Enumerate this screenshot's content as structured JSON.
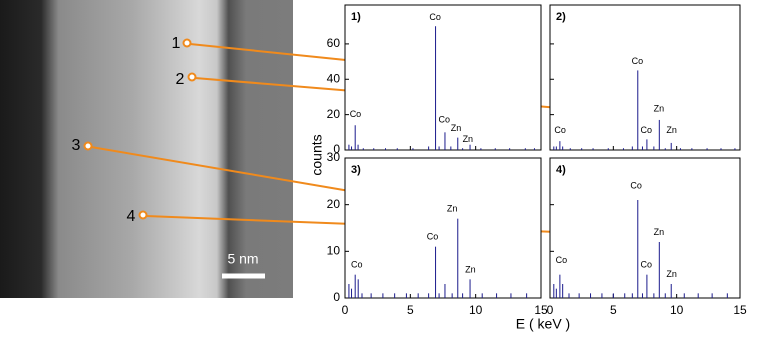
{
  "figure": {
    "y_label": "counts",
    "x_label": "E  ( keV )",
    "scale_bar": "5 nm",
    "points": [
      "1",
      "2",
      "3",
      "4"
    ]
  },
  "chart_data": [
    {
      "type": "stem",
      "panel_label": "1)",
      "color": "#1a1a8c",
      "xlim": [
        0,
        15
      ],
      "ylim": [
        0,
        82
      ],
      "xticks": [
        0,
        5,
        10,
        15
      ],
      "yticks": [
        0,
        20,
        40,
        60
      ],
      "xtick_labels": false,
      "ytick_labels": true,
      "x": [
        0.3,
        0.5,
        0.78,
        1.0,
        1.4,
        2.2,
        3.1,
        4.0,
        5.2,
        6.4,
        6.93,
        7.2,
        7.65,
        8.1,
        8.63,
        9.0,
        9.57,
        10.4,
        11.5,
        12.6,
        13.8,
        14.5
      ],
      "values": [
        3,
        2,
        14,
        3,
        1,
        1,
        1,
        1,
        1,
        2,
        70,
        2,
        10,
        2,
        7,
        1,
        3,
        1,
        1,
        1,
        1,
        1
      ],
      "annotations": [
        {
          "text": "Co",
          "x": 0.8,
          "y": 20
        },
        {
          "text": "Co",
          "x": 6.9,
          "y": 75
        },
        {
          "text": "Co",
          "x": 7.6,
          "y": 17
        },
        {
          "text": "Zn",
          "x": 8.5,
          "y": 12
        },
        {
          "text": "Zn",
          "x": 9.4,
          "y": 6
        }
      ]
    },
    {
      "type": "stem",
      "panel_label": "2)",
      "color": "#1a1a8c",
      "xlim": [
        0,
        15
      ],
      "ylim": [
        0,
        82
      ],
      "xticks": [
        0,
        5,
        10,
        15
      ],
      "yticks": [
        0,
        20,
        40,
        60
      ],
      "xtick_labels": false,
      "ytick_labels": false,
      "x": [
        0.3,
        0.5,
        0.78,
        1.0,
        1.6,
        2.5,
        3.4,
        4.6,
        5.8,
        6.5,
        6.93,
        7.3,
        7.65,
        8.2,
        8.63,
        9.1,
        9.57,
        10.3,
        11.2,
        12.4,
        13.5,
        14.6
      ],
      "values": [
        2,
        2,
        5,
        2,
        1,
        1,
        1,
        1,
        1,
        2,
        45,
        2,
        6,
        2,
        17,
        1,
        4,
        1,
        1,
        1,
        1,
        1
      ],
      "annotations": [
        {
          "text": "Co",
          "x": 0.8,
          "y": 11
        },
        {
          "text": "Co",
          "x": 6.9,
          "y": 50
        },
        {
          "text": "Co",
          "x": 7.6,
          "y": 11
        },
        {
          "text": "Zn",
          "x": 8.6,
          "y": 23
        },
        {
          "text": "Zn",
          "x": 9.6,
          "y": 11
        }
      ]
    },
    {
      "type": "stem",
      "panel_label": "3)",
      "color": "#1a1a8c",
      "xlim": [
        0,
        15
      ],
      "ylim": [
        0,
        30
      ],
      "xticks": [
        0,
        5,
        10,
        15
      ],
      "yticks": [
        0,
        10,
        20,
        30
      ],
      "xtick_labels": true,
      "ytick_labels": true,
      "x": [
        0.3,
        0.5,
        0.78,
        1.01,
        1.3,
        2.0,
        2.9,
        3.8,
        4.7,
        5.6,
        6.4,
        6.93,
        7.2,
        7.65,
        8.2,
        8.63,
        9.0,
        9.57,
        10.5,
        11.6,
        12.7,
        13.9
      ],
      "values": [
        3,
        2,
        5,
        4,
        1,
        1,
        1,
        1,
        1,
        1,
        1,
        11,
        1,
        3,
        1,
        17,
        1,
        4,
        1,
        1,
        1,
        1
      ],
      "annotations": [
        {
          "text": "Co",
          "x": 0.9,
          "y": 7
        },
        {
          "text": "Co",
          "x": 6.7,
          "y": 13
        },
        {
          "text": "Zn",
          "x": 8.2,
          "y": 19
        },
        {
          "text": "Zn",
          "x": 9.6,
          "y": 6
        }
      ]
    },
    {
      "type": "stem",
      "panel_label": "4)",
      "color": "#1a1a8c",
      "xlim": [
        0,
        15
      ],
      "ylim": [
        0,
        30
      ],
      "xticks": [
        0,
        5,
        10,
        15
      ],
      "yticks": [
        0,
        10,
        20,
        30
      ],
      "xtick_labels": true,
      "ytick_labels": false,
      "x": [
        0.3,
        0.5,
        0.78,
        1.0,
        1.5,
        2.3,
        3.2,
        4.1,
        5.0,
        5.9,
        6.5,
        6.93,
        7.3,
        7.65,
        8.2,
        8.63,
        9.1,
        9.57,
        10.6,
        11.7,
        12.8,
        14.0
      ],
      "values": [
        3,
        2,
        5,
        3,
        1,
        1,
        1,
        1,
        1,
        1,
        1,
        21,
        1,
        5,
        1,
        12,
        1,
        3,
        1,
        1,
        1,
        1
      ],
      "annotations": [
        {
          "text": "Co",
          "x": 0.9,
          "y": 8
        },
        {
          "text": "Co",
          "x": 6.8,
          "y": 24
        },
        {
          "text": "Co",
          "x": 7.6,
          "y": 7
        },
        {
          "text": "Zn",
          "x": 8.6,
          "y": 14
        },
        {
          "text": "Zn",
          "x": 9.6,
          "y": 5
        }
      ]
    }
  ]
}
